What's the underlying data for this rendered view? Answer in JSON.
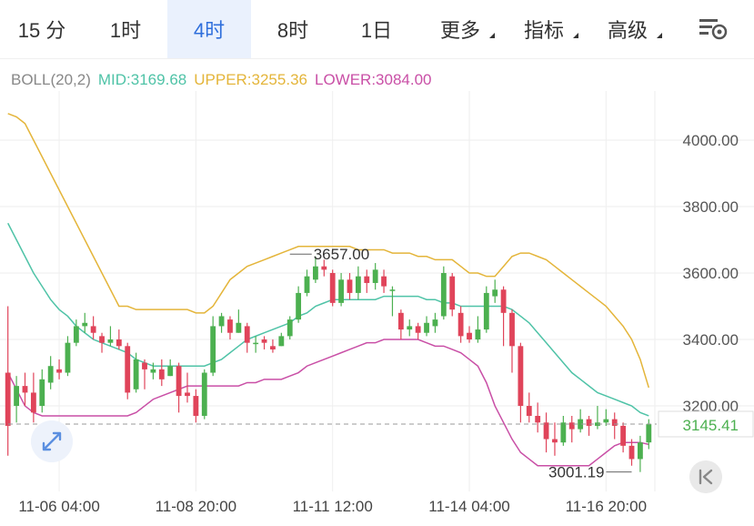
{
  "tabs": [
    {
      "label": "15 分",
      "active": false,
      "dropdown": false
    },
    {
      "label": "1时",
      "active": false,
      "dropdown": false
    },
    {
      "label": "4时",
      "active": true,
      "dropdown": false
    },
    {
      "label": "8时",
      "active": false,
      "dropdown": false
    },
    {
      "label": "1日",
      "active": false,
      "dropdown": false
    },
    {
      "label": "更多",
      "active": false,
      "dropdown": true
    },
    {
      "label": "指标",
      "active": false,
      "dropdown": true
    },
    {
      "label": "高级",
      "active": false,
      "dropdown": true
    }
  ],
  "indicator": {
    "name": "BOLL(20,2)",
    "mid": "MID:3169.68",
    "upper": "UPPER:3255.36",
    "lower": "LOWER:3084.00"
  },
  "colors": {
    "active_tab": "#2f6fdc",
    "up": "#4cb050",
    "down": "#e0445a",
    "mid": "#4fc3a7",
    "upper": "#e4b53a",
    "lower": "#c94fa6",
    "grid": "#eeeeee"
  },
  "icons": {
    "settings": "chart-settings-icon",
    "expand": "expand-arrows-icon",
    "back": "skip-to-latest-icon"
  },
  "chart_data": {
    "type": "candlestick",
    "interval": "4时",
    "y_ticks": [
      "4000.00",
      "3800.00",
      "3600.00",
      "3400.00",
      "3200.00"
    ],
    "y_tick_values": [
      4000,
      3800,
      3600,
      3400,
      3200
    ],
    "ylim": [
      2970,
      4115
    ],
    "x_ticks": [
      "11-06 04:00",
      "11-08 20:00",
      "11-11 12:00",
      "11-14 04:00",
      "11-16 20:00"
    ],
    "x_tick_index": [
      6,
      22,
      38,
      54,
      70
    ],
    "last_price": "3145.41",
    "last_price_value": 3145.41,
    "high_label": "3657.00",
    "high_value": 3657,
    "high_index": 33,
    "low_label": "3001.19",
    "low_value": 3001.19,
    "low_index": 73,
    "candles": [
      [
        3300,
        3140,
        3500,
        3050
      ],
      [
        3200,
        3260,
        3290,
        3150
      ],
      [
        3260,
        3240,
        3300,
        3200
      ],
      [
        3240,
        3180,
        3300,
        3150
      ],
      [
        3200,
        3280,
        3310,
        3180
      ],
      [
        3270,
        3320,
        3350,
        3250
      ],
      [
        3310,
        3300,
        3340,
        3280
      ],
      [
        3300,
        3390,
        3410,
        3290
      ],
      [
        3390,
        3440,
        3460,
        3380
      ],
      [
        3440,
        3450,
        3480,
        3420
      ],
      [
        3440,
        3420,
        3470,
        3400
      ],
      [
        3410,
        3390,
        3420,
        3360
      ],
      [
        3390,
        3400,
        3440,
        3380
      ],
      [
        3400,
        3380,
        3430,
        3370
      ],
      [
        3380,
        3240,
        3390,
        3220
      ],
      [
        3250,
        3340,
        3360,
        3240
      ],
      [
        3330,
        3310,
        3340,
        3250
      ],
      [
        3300,
        3310,
        3330,
        3280
      ],
      [
        3310,
        3280,
        3340,
        3260
      ],
      [
        3290,
        3320,
        3340,
        3290
      ],
      [
        3320,
        3230,
        3330,
        3180
      ],
      [
        3240,
        3230,
        3300,
        3210
      ],
      [
        3230,
        3170,
        3250,
        3150
      ],
      [
        3170,
        3300,
        3310,
        3160
      ],
      [
        3300,
        3440,
        3470,
        3290
      ],
      [
        3440,
        3470,
        3480,
        3420
      ],
      [
        3460,
        3420,
        3470,
        3400
      ],
      [
        3420,
        3450,
        3490,
        3420
      ],
      [
        3440,
        3390,
        3450,
        3360
      ],
      [
        3390,
        3390,
        3410,
        3360
      ],
      [
        3400,
        3390,
        3410,
        3370
      ],
      [
        3380,
        3370,
        3400,
        3360
      ],
      [
        3380,
        3410,
        3420,
        3380
      ],
      [
        3410,
        3460,
        3470,
        3400
      ],
      [
        3460,
        3540,
        3560,
        3450
      ],
      [
        3540,
        3590,
        3610,
        3530
      ],
      [
        3580,
        3620,
        3650,
        3570
      ],
      [
        3620,
        3610,
        3640,
        3590
      ],
      [
        3600,
        3510,
        3610,
        3500
      ],
      [
        3510,
        3580,
        3600,
        3500
      ],
      [
        3580,
        3540,
        3600,
        3520
      ],
      [
        3540,
        3590,
        3620,
        3520
      ],
      [
        3590,
        3570,
        3610,
        3540
      ],
      [
        3570,
        3610,
        3630,
        3550
      ],
      [
        3590,
        3560,
        3610,
        3540
      ],
      [
        3550,
        3550,
        3560,
        3470
      ],
      [
        3480,
        3430,
        3490,
        3400
      ],
      [
        3430,
        3440,
        3460,
        3410
      ],
      [
        3440,
        3420,
        3450,
        3400
      ],
      [
        3420,
        3450,
        3470,
        3410
      ],
      [
        3440,
        3460,
        3480,
        3420
      ],
      [
        3470,
        3600,
        3620,
        3460
      ],
      [
        3590,
        3490,
        3600,
        3470
      ],
      [
        3480,
        3410,
        3500,
        3390
      ],
      [
        3420,
        3400,
        3440,
        3390
      ],
      [
        3400,
        3430,
        3470,
        3390
      ],
      [
        3430,
        3540,
        3560,
        3420
      ],
      [
        3530,
        3550,
        3580,
        3510
      ],
      [
        3550,
        3480,
        3560,
        3380
      ],
      [
        3480,
        3380,
        3490,
        3300
      ],
      [
        3380,
        3200,
        3390,
        3150
      ],
      [
        3200,
        3170,
        3240,
        3150
      ],
      [
        3170,
        3150,
        3210,
        3120
      ],
      [
        3150,
        3100,
        3180,
        3060
      ],
      [
        3100,
        3090,
        3150,
        3050
      ],
      [
        3090,
        3150,
        3170,
        3080
      ],
      [
        3150,
        3130,
        3170,
        3090
      ],
      [
        3130,
        3160,
        3190,
        3120
      ],
      [
        3160,
        3140,
        3170,
        3110
      ],
      [
        3140,
        3150,
        3200,
        3130
      ],
      [
        3150,
        3160,
        3190,
        3140
      ],
      [
        3160,
        3140,
        3180,
        3100
      ],
      [
        3140,
        3080,
        3150,
        3060
      ],
      [
        3080,
        3040,
        3100,
        3020
      ],
      [
        3040,
        3090,
        3110,
        3001
      ],
      [
        3090,
        3145,
        3160,
        3070
      ]
    ],
    "upper": [
      4080,
      4070,
      4050,
      4000,
      3950,
      3900,
      3850,
      3800,
      3750,
      3700,
      3650,
      3600,
      3550,
      3500,
      3500,
      3490,
      3490,
      3490,
      3490,
      3490,
      3490,
      3490,
      3480,
      3480,
      3500,
      3540,
      3580,
      3600,
      3620,
      3630,
      3640,
      3650,
      3660,
      3670,
      3680,
      3680,
      3680,
      3680,
      3680,
      3680,
      3680,
      3670,
      3670,
      3670,
      3670,
      3660,
      3660,
      3660,
      3650,
      3650,
      3640,
      3640,
      3640,
      3620,
      3600,
      3600,
      3590,
      3590,
      3620,
      3650,
      3660,
      3660,
      3650,
      3640,
      3620,
      3600,
      3580,
      3560,
      3540,
      3520,
      3500,
      3470,
      3440,
      3400,
      3340,
      3255
    ],
    "mid": [
      3750,
      3700,
      3650,
      3600,
      3560,
      3520,
      3490,
      3470,
      3440,
      3420,
      3400,
      3390,
      3380,
      3370,
      3360,
      3340,
      3330,
      3320,
      3320,
      3320,
      3320,
      3320,
      3320,
      3320,
      3330,
      3340,
      3360,
      3380,
      3400,
      3410,
      3420,
      3430,
      3440,
      3450,
      3470,
      3480,
      3500,
      3510,
      3520,
      3520,
      3520,
      3520,
      3520,
      3520,
      3530,
      3530,
      3530,
      3530,
      3530,
      3520,
      3520,
      3510,
      3510,
      3500,
      3500,
      3500,
      3500,
      3500,
      3500,
      3490,
      3470,
      3450,
      3420,
      3390,
      3360,
      3330,
      3300,
      3280,
      3260,
      3240,
      3230,
      3220,
      3210,
      3200,
      3180,
      3170
    ],
    "lower": [
      3300,
      3250,
      3200,
      3180,
      3170,
      3170,
      3170,
      3170,
      3170,
      3170,
      3170,
      3170,
      3170,
      3170,
      3170,
      3180,
      3200,
      3220,
      3230,
      3240,
      3250,
      3260,
      3260,
      3260,
      3260,
      3260,
      3260,
      3260,
      3270,
      3270,
      3280,
      3280,
      3280,
      3290,
      3300,
      3320,
      3330,
      3340,
      3350,
      3360,
      3370,
      3380,
      3390,
      3390,
      3400,
      3400,
      3400,
      3400,
      3400,
      3390,
      3380,
      3380,
      3370,
      3360,
      3340,
      3320,
      3270,
      3200,
      3150,
      3100,
      3060,
      3040,
      3020,
      3020,
      3020,
      3020,
      3020,
      3020,
      3020,
      3040,
      3060,
      3080,
      3090,
      3090,
      3090,
      3084
    ]
  }
}
